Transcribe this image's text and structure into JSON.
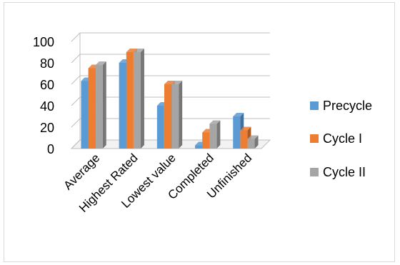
{
  "chart_data": {
    "type": "bar",
    "categories": [
      "Average",
      "Highest Rated",
      "Lowest value",
      "Completed",
      "Unfinished"
    ],
    "series": [
      {
        "name": "Precycle",
        "values": [
          63,
          80,
          40,
          3,
          30
        ]
      },
      {
        "name": "Cycle I",
        "values": [
          75,
          90,
          60,
          15,
          17
        ]
      },
      {
        "name": "Cycle II",
        "values": [
          78,
          90,
          60,
          23,
          9
        ]
      }
    ],
    "colors": [
      "#5b9bd5",
      "#ed7d31",
      "#a5a5a5"
    ],
    "y_ticks": [
      "0",
      "20",
      "40",
      "60",
      "80",
      "100"
    ],
    "ylim": [
      0,
      100
    ],
    "grid": true,
    "legend_position": "right",
    "style": "3d-clustered-column"
  }
}
